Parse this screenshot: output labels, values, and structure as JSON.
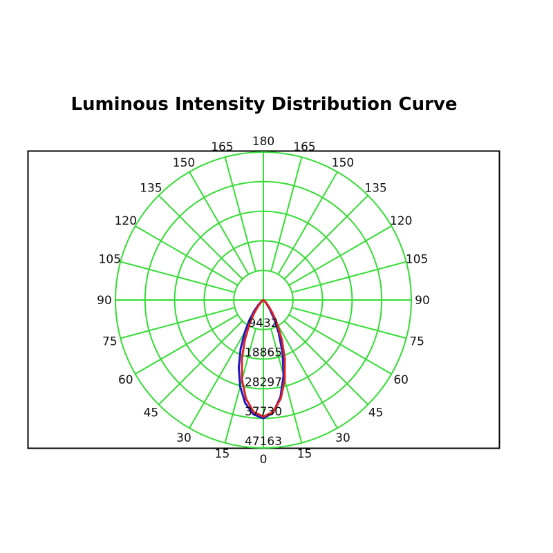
{
  "chart_data": {
    "type": "polar",
    "title": "Luminous Intensity Distribution Curve",
    "angle_labels": [
      "0",
      "15",
      "30",
      "45",
      "60",
      "75",
      "90",
      "105",
      "120",
      "135",
      "150",
      "165",
      "180"
    ],
    "radial_tick_labels": [
      "9432",
      "18865",
      "28297",
      "37730",
      "47163"
    ],
    "radial_max": 47163,
    "grid": true,
    "colors": {
      "grid": "#33dd33",
      "frame": "#000000"
    },
    "angles_deg": [
      -90,
      -85,
      -80,
      -75,
      -70,
      -65,
      -60,
      -55,
      -50,
      -45,
      -40,
      -35,
      -30,
      -25,
      -20,
      -15,
      -10,
      -5,
      0,
      5,
      10,
      15,
      20,
      25,
      30,
      35,
      40,
      45,
      50,
      55,
      60,
      65,
      70,
      75,
      80,
      85,
      90
    ],
    "series": [
      {
        "color": "#1a1acc",
        "values": [
          0,
          0,
          0,
          0,
          0,
          0,
          0,
          50,
          190,
          590,
          1540,
          3440,
          6710,
          11590,
          17880,
          24870,
          31380,
          36020,
          37700,
          36570,
          33360,
          28570,
          22910,
          17160,
          11920,
          7640,
          4470,
          2360,
          1100,
          450,
          150,
          40,
          0,
          0,
          0,
          0,
          0
        ]
      },
      {
        "color": "#dd2222",
        "values": [
          0,
          0,
          0,
          0,
          0,
          0,
          36,
          140,
          450,
          1160,
          2590,
          5060,
          8820,
          13910,
          19970,
          26310,
          31920,
          35810,
          37200,
          35810,
          31920,
          26310,
          19970,
          13910,
          8820,
          5060,
          2590,
          1160,
          450,
          140,
          36,
          0,
          0,
          0,
          0,
          0,
          0
        ]
      }
    ]
  }
}
